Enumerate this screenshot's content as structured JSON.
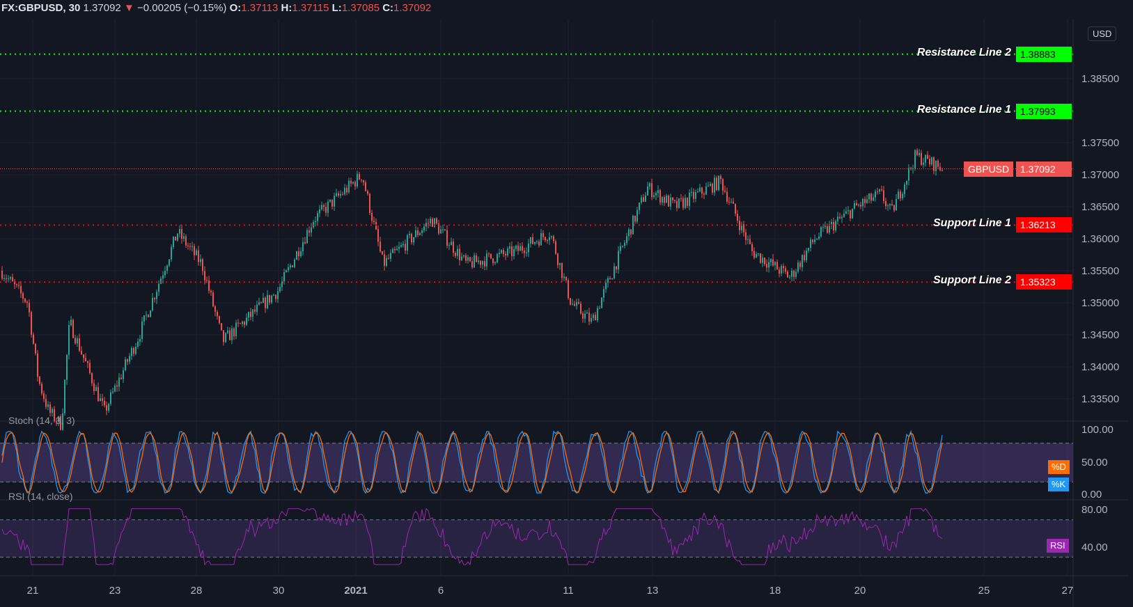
{
  "header": {
    "symbol": "FX:GBPUSD, 30",
    "last": "1.37092",
    "change": "−0.00205 (−0.15%)",
    "o_label": "O:",
    "o": "1.37113",
    "h_label": "H:",
    "h": "1.37115",
    "l_label": "L:",
    "l": "1.37085",
    "c_label": "C:",
    "c": "1.37092",
    "direction_icon": "triangle-down-icon"
  },
  "currency": "USD",
  "price_axis": [
    "1.38500",
    "1.37500",
    "1.37000",
    "1.36500",
    "1.36000",
    "1.35500",
    "1.35000",
    "1.34500",
    "1.34000",
    "1.33500"
  ],
  "levels": [
    {
      "name": "Resistance Line 2",
      "value": "1.38883",
      "color": "#00ff00"
    },
    {
      "name": "Resistance Line 1",
      "value": "1.37993",
      "color": "#00ff00"
    },
    {
      "name": "Support Line 1",
      "value": "1.36213",
      "color": "#ff0000"
    },
    {
      "name": "Support Line 2",
      "value": "1.35323",
      "color": "#ff0000"
    }
  ],
  "current": {
    "label": "GBPUSD",
    "value": "1.37092",
    "color": "#ef5350"
  },
  "stoch": {
    "title": "Stoch (14, 3, 3)",
    "axis": [
      "100.00",
      "50.00",
      "0.00"
    ],
    "d_label": "%D",
    "k_label": "%K",
    "d_color": "#ff6d00",
    "k_color": "#2196f3"
  },
  "rsi": {
    "title": "RSI (14, close)",
    "axis": [
      "80.00",
      "40.00"
    ],
    "label": "RSI",
    "color": "#9c27b0"
  },
  "time_axis": [
    "21",
    "23",
    "28",
    "30",
    "2021",
    "6",
    "11",
    "13",
    "18",
    "20",
    "25",
    "27"
  ],
  "colors": {
    "up": "#26a69a",
    "down": "#ef5350",
    "background": "#131722"
  }
}
